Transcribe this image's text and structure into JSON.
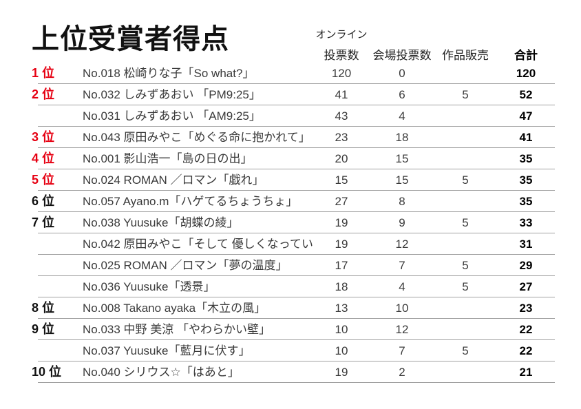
{
  "title": "上位受賞者得点",
  "header": {
    "online_line1": "オンライン",
    "online_line2": "投票数",
    "venue": "会場投票数",
    "sales": "作品販売",
    "total": "合計"
  },
  "colors": {
    "rank_highlight": "#e60012",
    "body_text": "#3a3a3a",
    "divider": "#a0a0a0"
  },
  "rows": [
    {
      "rank": "1 位",
      "highlight": true,
      "entry": "No.018 松崎りな子「So what?」",
      "online": "120",
      "venue": "0",
      "sales": "",
      "total": "120"
    },
    {
      "rank": "2 位",
      "highlight": true,
      "entry": "No.032 しみずあおい 「PM9:25」",
      "online": "41",
      "venue": "6",
      "sales": "5",
      "total": "52"
    },
    {
      "rank": "",
      "highlight": false,
      "entry": "No.031 しみずあおい 「AM9:25」",
      "online": "43",
      "venue": "4",
      "sales": "",
      "total": "47"
    },
    {
      "rank": "3 位",
      "highlight": true,
      "entry": "No.043 原田みやこ「めぐる命に抱かれて」",
      "online": "23",
      "venue": "18",
      "sales": "",
      "total": "41"
    },
    {
      "rank": "4 位",
      "highlight": true,
      "entry": "No.001 影山浩一「島の日の出」",
      "online": "20",
      "venue": "15",
      "sales": "",
      "total": "35"
    },
    {
      "rank": "5 位",
      "highlight": true,
      "entry": "No.024 ROMAN ／ロマン「戯れ」",
      "online": "15",
      "venue": "15",
      "sales": "5",
      "total": "35"
    },
    {
      "rank": "6 位",
      "highlight": false,
      "entry": "No.057 Ayano.m「ハゲてるちょうちょ」",
      "online": "27",
      "venue": "8",
      "sales": "",
      "total": "35"
    },
    {
      "rank": "7 位",
      "highlight": false,
      "entry": "No.038 Yuusuke「胡蝶の綾」",
      "online": "19",
      "venue": "9",
      "sales": "5",
      "total": "33"
    },
    {
      "rank": "",
      "highlight": false,
      "entry": "No.042 原田みやこ「そして 優しくなっていく」",
      "online": "19",
      "venue": "12",
      "sales": "",
      "total": "31"
    },
    {
      "rank": "",
      "highlight": false,
      "entry": "No.025 ROMAN ／ロマン「夢の温度」",
      "online": "17",
      "venue": "7",
      "sales": "5",
      "total": "29"
    },
    {
      "rank": "",
      "highlight": false,
      "entry": "No.036 Yuusuke「透景」",
      "online": "18",
      "venue": "4",
      "sales": "5",
      "total": "27"
    },
    {
      "rank": "8 位",
      "highlight": false,
      "entry": "No.008 Takano ayaka「木立の風」",
      "online": "13",
      "venue": "10",
      "sales": "",
      "total": "23"
    },
    {
      "rank": "9 位",
      "highlight": false,
      "entry": "No.033 中野 美涼 「やわらかい壁」",
      "online": "10",
      "venue": "12",
      "sales": "",
      "total": "22"
    },
    {
      "rank": "",
      "highlight": false,
      "entry": "No.037 Yuusuke「藍月に伏す」",
      "online": "10",
      "venue": "7",
      "sales": "5",
      "total": "22"
    },
    {
      "rank": "10 位",
      "highlight": false,
      "entry": "No.040 シリウス☆「はあと」",
      "online": "19",
      "venue": "2",
      "sales": "",
      "total": "21"
    }
  ]
}
